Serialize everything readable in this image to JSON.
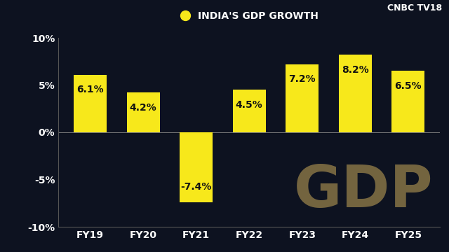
{
  "chart_data": {
    "type": "bar",
    "categories": [
      "FY19",
      "FY20",
      "FY21",
      "FY22",
      "FY23",
      "FY24",
      "FY25"
    ],
    "series": [
      {
        "name": "INDIA'S GDP GROWTH",
        "color": "#f7e81b",
        "values": [
          6.1,
          4.2,
          -7.4,
          4.5,
          7.2,
          8.2,
          6.5
        ],
        "value_labels": [
          "6.1%",
          "4.2%",
          "-7.4%",
          "4.5%",
          "7.2%",
          "8.2%",
          "6.5%"
        ]
      }
    ],
    "ylim": [
      -10,
      10
    ],
    "yticks": [
      {
        "value": -10,
        "label": "-10%"
      },
      {
        "value": -5,
        "label": "-5%"
      },
      {
        "value": 0,
        "label": "0%"
      },
      {
        "value": 5,
        "label": "5%"
      },
      {
        "value": 10,
        "label": "10%"
      }
    ],
    "legend": "upper center",
    "data_labels": true,
    "grid": false,
    "annotations": [
      "GDP",
      "CNBC TV18"
    ]
  }
}
